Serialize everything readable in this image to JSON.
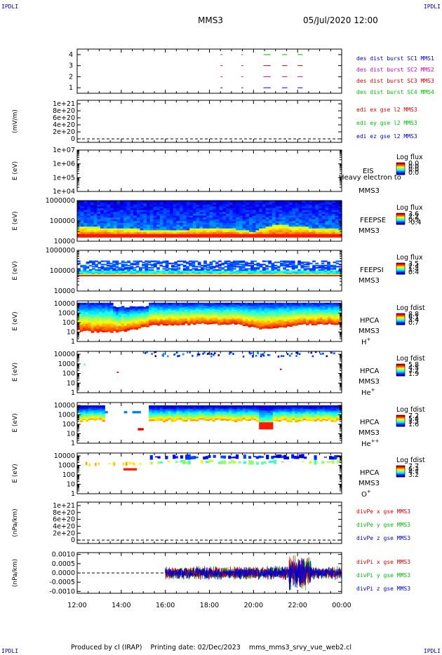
{
  "header": {
    "corner_tl": "IPDLI",
    "corner_tr": "IPDLI",
    "corner_bl": "IPDLI",
    "corner_br": "IPDLI",
    "spacecraft": "MMS3",
    "date": "05/Jul/2020 12:00"
  },
  "footer": {
    "produced": "Produced by cl (IRAP)",
    "printing": "Printing date: 02/Dec/2023",
    "file": "mms_mms3_srvy_vue_web2.cl"
  },
  "colors": {
    "red": "#dd0000",
    "green": "#00c000",
    "blue": "#0000cc",
    "magenta": "#cc00cc",
    "dark_red": "#aa0000"
  },
  "chart_data": [
    {
      "type": "scatter",
      "id": "burst",
      "ylim": [
        0.5,
        4.5
      ],
      "ticks": [
        "1",
        "2",
        "3",
        "4"
      ],
      "xlim": [
        12,
        24
      ],
      "legend": [
        "des dist burst SC1 MMS1",
        "des dist burst SC2 MMS2",
        "des dist burst SC3 MMS3",
        "des dist burst SC4 MMS4"
      ],
      "series": [
        {
          "name": "des dist burst SC1 MMS1",
          "y": 1,
          "segments": [
            [
              18.5,
              18.56
            ],
            [
              19.45,
              19.5
            ],
            [
              20.45,
              20.75
            ],
            [
              21.3,
              21.5
            ],
            [
              22.0,
              22.2
            ]
          ]
        },
        {
          "name": "des dist burst SC2 MMS2",
          "y": 2,
          "segments": [
            [
              18.5,
              18.56
            ],
            [
              19.45,
              19.5
            ],
            [
              20.45,
              20.75
            ],
            [
              21.3,
              21.5
            ],
            [
              22.0,
              22.2
            ]
          ]
        },
        {
          "name": "des dist burst SC3 MMS3",
          "y": 3,
          "segments": [
            [
              18.5,
              18.56
            ],
            [
              19.45,
              19.5
            ],
            [
              20.45,
              20.75
            ],
            [
              21.3,
              21.5
            ],
            [
              22.0,
              22.2
            ]
          ]
        },
        {
          "name": "des dist burst SC4 MMS4",
          "y": 4,
          "segments": [
            [
              18.5,
              18.56
            ],
            [
              19.45,
              19.5
            ],
            [
              20.45,
              20.75
            ],
            [
              21.3,
              21.5
            ],
            [
              22.0,
              22.2
            ]
          ]
        }
      ]
    },
    {
      "type": "line",
      "id": "edi",
      "ylabel": "(mV/m)",
      "ticks": [
        "0",
        "2e+20",
        "4e+20",
        "6e+20",
        "8e+20",
        "1e+21"
      ],
      "tick_values": [
        0,
        2e+20,
        4e+20,
        6e+20,
        8e+20,
        1e+21
      ],
      "ylim": [
        -1e+20,
        1.1e+21
      ],
      "legend": [
        "edi ex gse l2 MMS3",
        "edi ey gse l2 MMS3",
        "edi ez gse l2 MMS3"
      ],
      "zero_line": true
    },
    {
      "type": "heatmap",
      "id": "eis",
      "ylabel": "E (eV)",
      "ticks": [
        "1e+04",
        "1e+05",
        "1e+06",
        "1e+07"
      ],
      "log_range": [
        4,
        7
      ],
      "instrument": "EIS",
      "spacecraft": "MMS3",
      "overlay_text": "Heavy electron to",
      "colorbar_label": "Log flux",
      "colorbar_values": [
        "0.0",
        "0.0",
        "0.0",
        "0.0"
      ]
    },
    {
      "type": "heatmap",
      "id": "feepse",
      "ylabel": "E (eV)",
      "ticks": [
        "10000",
        "100000",
        "1000000"
      ],
      "log_range": [
        4,
        6
      ],
      "instrument": "FEEPSE",
      "spacecraft": "MMS3",
      "colorbar_label": "Log flux",
      "colorbar_values": [
        "3.6",
        "2.2",
        "0.9",
        "-0.4"
      ],
      "profile": {
        "low": 4.2,
        "top_t": [
          [
            12,
            4.7
          ],
          [
            15,
            4.55
          ],
          [
            16.5,
            4.5
          ],
          [
            18,
            4.65
          ],
          [
            19,
            4.6
          ],
          [
            20,
            4.45
          ],
          [
            21,
            4.8
          ],
          [
            22,
            4.7
          ],
          [
            23,
            4.6
          ],
          [
            24,
            4.55
          ]
        ]
      }
    },
    {
      "type": "heatmap",
      "id": "feepsi",
      "ylabel": "E (eV)",
      "ticks": [
        "10000",
        "100000",
        "1000000"
      ],
      "log_range": [
        4,
        6
      ],
      "instrument": "FEEPSI",
      "spacecraft": "MMS3",
      "colorbar_label": "Log flux",
      "colorbar_values": [
        "3.5",
        "2.4",
        "1.4",
        "0.4"
      ],
      "band_low": 4.75,
      "band_high": 5.0
    },
    {
      "type": "heatmap",
      "id": "hpca_h",
      "ylabel": "E (eV)",
      "ticks": [
        "1",
        "10",
        "100",
        "1000",
        "10000"
      ],
      "log_range": [
        0,
        4.3
      ],
      "instrument": "HPCA",
      "spacecraft": "MMS3",
      "species": "H",
      "species_sup": "+",
      "colorbar_label": "Log fdist",
      "colorbar_values": [
        "8.8",
        "6.1",
        "3.4",
        "0.7"
      ],
      "profile": [
        [
          12,
          1.2
        ],
        [
          13,
          1.0
        ],
        [
          14,
          1.1
        ],
        [
          15,
          1.5
        ],
        [
          15.4,
          1.8
        ],
        [
          16,
          1.8
        ],
        [
          18,
          1.9
        ],
        [
          19.5,
          1.8
        ],
        [
          20.5,
          1.3
        ],
        [
          21,
          1.4
        ],
        [
          22,
          1.8
        ],
        [
          24,
          1.9
        ]
      ]
    },
    {
      "type": "heatmap",
      "id": "hpca_he",
      "ylabel": "E (eV)",
      "ticks": [
        "1",
        "10",
        "100",
        "1000",
        "10000"
      ],
      "log_range": [
        0,
        4.3
      ],
      "instrument": "HPCA",
      "spacecraft": "MMS3",
      "species": "He",
      "species_sup": "+",
      "colorbar_label": "Log fdist",
      "colorbar_values": [
        "5.8",
        "4.5",
        "3.2",
        "1.9"
      ]
    },
    {
      "type": "heatmap",
      "id": "hpca_hepp",
      "ylabel": "E (eV)",
      "ticks": [
        "1",
        "10",
        "100",
        "1000",
        "10000"
      ],
      "log_range": [
        0,
        4.3
      ],
      "instrument": "HPCA",
      "spacecraft": "MMS3",
      "species": "He",
      "species_sup": "++",
      "colorbar_label": "Log fdist",
      "colorbar_values": [
        "7.2",
        "5.4",
        "3.5",
        "1.6"
      ]
    },
    {
      "type": "heatmap",
      "id": "hpca_o",
      "ylabel": "E (eV)",
      "ticks": [
        "1",
        "10",
        "100",
        "1000",
        "10000"
      ],
      "log_range": [
        0,
        4.3
      ],
      "instrument": "HPCA",
      "spacecraft": "MMS3",
      "species": "O",
      "species_sup": "+",
      "colorbar_label": "Log fdist",
      "colorbar_values": [
        "7.7",
        "6.2",
        "4.7",
        "3.2"
      ]
    },
    {
      "type": "line",
      "id": "divpe",
      "ylabel": "(nPa/km)",
      "ticks": [
        "0",
        "2e+20",
        "4e+20",
        "6e+20",
        "8e+20",
        "1e+21"
      ],
      "tick_values": [
        0,
        2e+20,
        4e+20,
        6e+20,
        8e+20,
        1e+21
      ],
      "ylim": [
        -1e+20,
        1.1e+21
      ],
      "legend": [
        "divPe x gse MMS3",
        "divPe y gse MMS3",
        "divPe z gse MMS3"
      ],
      "zero_line": true
    },
    {
      "type": "line",
      "id": "divpi",
      "ylabel": "(nPa/km)",
      "ticks": [
        "-0.0010",
        "-0.0005",
        "0.0000",
        "0.0005",
        "0.0010"
      ],
      "tick_values": [
        -0.001,
        -0.0005,
        0,
        0.0005,
        0.001
      ],
      "ylim": [
        -0.0011,
        0.0011
      ],
      "legend": [
        "divPi x gse MMS3",
        "divPi y gse MMS3",
        "divPi z gse MMS3"
      ],
      "data_start": 16.0,
      "noise_amplitude": 0.00025,
      "zero_line": true
    }
  ],
  "xaxis": {
    "xlim": [
      12,
      24
    ],
    "tick_values": [
      12,
      14,
      16,
      18,
      20,
      22,
      24
    ],
    "tick_labels": [
      "12:00",
      "14:00",
      "16:00",
      "18:00",
      "20:00",
      "22:00",
      "00:00"
    ]
  }
}
